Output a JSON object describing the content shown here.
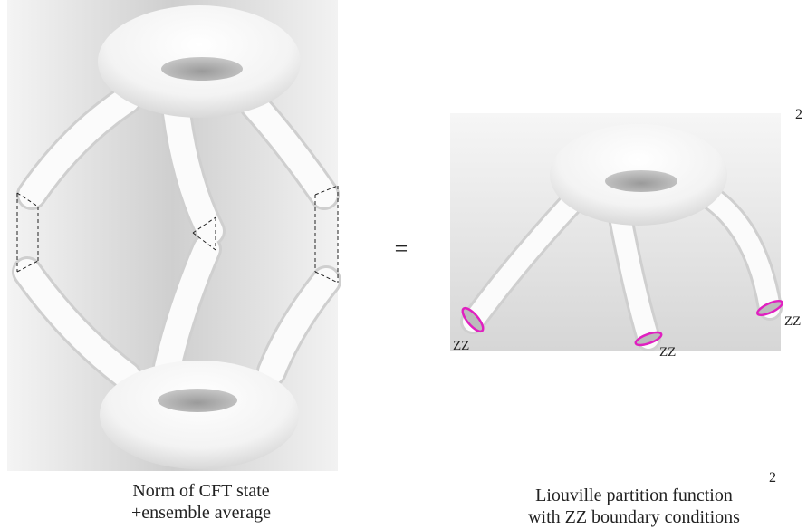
{
  "left": {
    "caption": [
      "Norm of CFT state",
      "+ensemble average"
    ]
  },
  "equals": "=",
  "right": {
    "exponent": "2",
    "boundary_labels": [
      "ZZ",
      "ZZ",
      "ZZ"
    ],
    "caption": [
      "Liouville partition function",
      "with ZZ boundary conditions"
    ],
    "caption_exponent": "2"
  }
}
